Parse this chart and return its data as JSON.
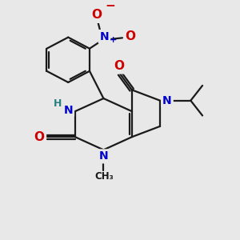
{
  "bg_color": "#e8e8e8",
  "bond_color": "#1a1a1a",
  "bond_width": 1.6,
  "atom_colors": {
    "N": "#0000cc",
    "O": "#cc0000",
    "H": "#2a8080",
    "C": "#1a1a1a"
  },
  "font_size": 10,
  "fig_size": [
    3.0,
    3.0
  ],
  "dpi": 100
}
